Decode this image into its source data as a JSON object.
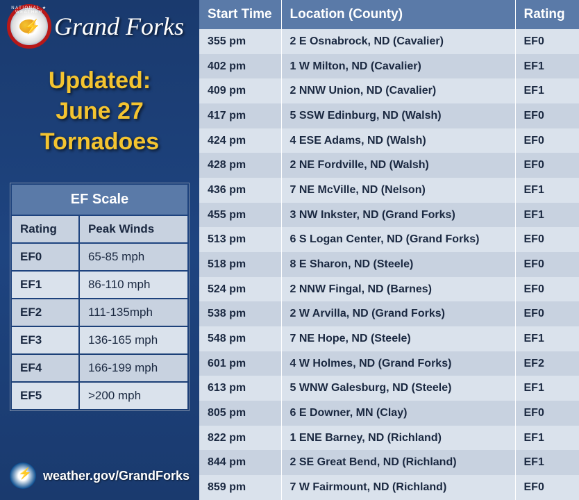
{
  "header": {
    "office": "Grand Forks",
    "title_l1": "Updated:",
    "title_l2": "June 27",
    "title_l3": "Tornadoes"
  },
  "footer": {
    "url": "weather.gov/GrandForks"
  },
  "efscale": {
    "title": "EF Scale",
    "col1": "Rating",
    "col2": "Peak Winds",
    "rows": [
      {
        "r": "EF0",
        "w": "65-85 mph"
      },
      {
        "r": "EF1",
        "w": "86-110 mph"
      },
      {
        "r": "EF2",
        "w": "111-135mph"
      },
      {
        "r": "EF3",
        "w": "136-165 mph"
      },
      {
        "r": "EF4",
        "w": "166-199 mph"
      },
      {
        "r": "EF5",
        "w": ">200 mph"
      }
    ]
  },
  "main": {
    "col1": "Start Time",
    "col2": "Location (County)",
    "col3": "Rating",
    "rows": [
      {
        "t": "355 pm",
        "l": "2 E Osnabrock, ND (Cavalier)",
        "r": "EF0"
      },
      {
        "t": "402 pm",
        "l": "1 W Milton, ND (Cavalier)",
        "r": "EF1"
      },
      {
        "t": "409 pm",
        "l": "2 NNW Union, ND (Cavalier)",
        "r": "EF1"
      },
      {
        "t": "417 pm",
        "l": "5 SSW Edinburg, ND (Walsh)",
        "r": "EF0"
      },
      {
        "t": "424 pm",
        "l": "4 ESE Adams, ND (Walsh)",
        "r": "EF0"
      },
      {
        "t": "428 pm",
        "l": "2 NE Fordville, ND (Walsh)",
        "r": "EF0"
      },
      {
        "t": "436 pm",
        "l": "7 NE McVille, ND (Nelson)",
        "r": "EF1"
      },
      {
        "t": "455 pm",
        "l": "3 NW Inkster, ND (Grand Forks)",
        "r": "EF1"
      },
      {
        "t": "513 pm",
        "l": "6 S Logan Center, ND (Grand Forks)",
        "r": "EF0"
      },
      {
        "t": "518 pm",
        "l": "8 E Sharon, ND (Steele)",
        "r": "EF0"
      },
      {
        "t": "524 pm",
        "l": "2 NNW Fingal, ND (Barnes)",
        "r": "EF0"
      },
      {
        "t": "538 pm",
        "l": "2 W Arvilla, ND (Grand Forks)",
        "r": "EF0"
      },
      {
        "t": "548 pm",
        "l": "7 NE Hope, ND (Steele)",
        "r": "EF1"
      },
      {
        "t": "601 pm",
        "l": "4 W Holmes, ND (Grand Forks)",
        "r": "EF2"
      },
      {
        "t": "613 pm",
        "l": "5 WNW Galesburg, ND (Steele)",
        "r": "EF1"
      },
      {
        "t": "805 pm",
        "l": "6 E Downer, MN (Clay)",
        "r": "EF0"
      },
      {
        "t": "822 pm",
        "l": "1 ENE Barney, ND (Richland)",
        "r": "EF1"
      },
      {
        "t": "844 pm",
        "l": "2 SE Great Bend, ND (Richland)",
        "r": "EF1"
      },
      {
        "t": "859 pm",
        "l": "7 W Fairmount, ND (Richland)",
        "r": "EF0"
      }
    ]
  },
  "colors": {
    "panel_bg": "#1a3a6e",
    "accent": "#f4c430",
    "table_header": "#5a7aa8",
    "row_odd": "#dae2ec",
    "row_even": "#c8d2e0",
    "text_dark": "#1a2840"
  }
}
